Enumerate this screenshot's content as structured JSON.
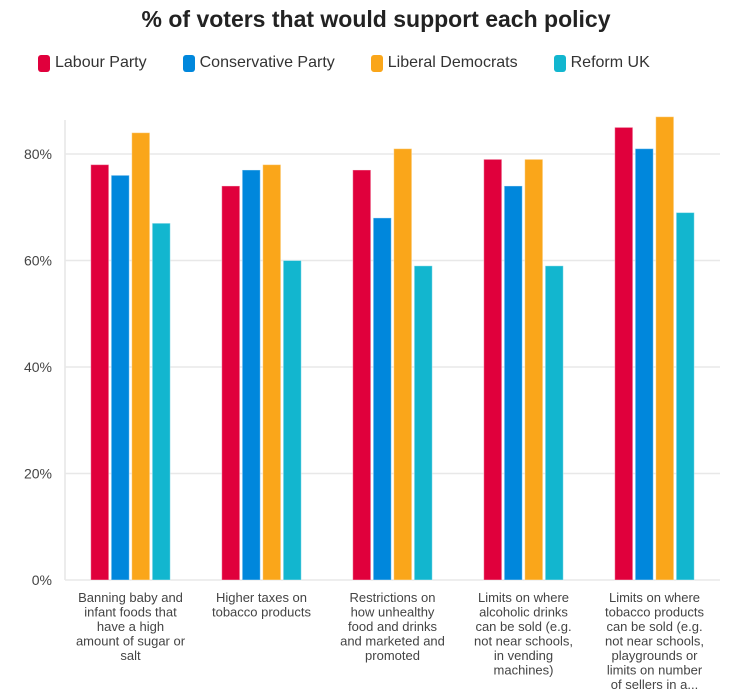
{
  "chart_data": {
    "type": "bar",
    "title": "% of voters that would support each policy",
    "xlabel": "",
    "ylabel": "",
    "ylim": [
      0,
      100
    ],
    "yticks": [
      "0%",
      "20%",
      "40%",
      "60%",
      "80%"
    ],
    "grid": true,
    "legend_position": "top",
    "categories": [
      [
        "Banning baby and",
        "infant foods that",
        "have a high",
        "amount of sugar or",
        "salt"
      ],
      [
        "Higher taxes on",
        "tobacco products"
      ],
      [
        "Restrictions on",
        "how unhealthy",
        "food and drinks",
        "and marketed and",
        "promoted"
      ],
      [
        "Limits on where",
        "alcoholic drinks",
        "can be sold (e.g.",
        "not near schools,",
        "in vending",
        "machines)"
      ],
      [
        "Limits on where",
        "tobacco products",
        "can be sold (e.g.",
        "not near schools,",
        "playgrounds or",
        "limits on number",
        "of sellers in a..."
      ]
    ],
    "series": [
      {
        "name": "Labour Party",
        "color": "#e0003c",
        "values": [
          78,
          74,
          77,
          79,
          85
        ]
      },
      {
        "name": "Conservative Party",
        "color": "#0087dc",
        "values": [
          76,
          77,
          68,
          74,
          81
        ]
      },
      {
        "name": "Liberal Democrats",
        "color": "#faa61a",
        "values": [
          84,
          78,
          81,
          79,
          87
        ]
      },
      {
        "name": "Reform UK",
        "color": "#12b6cf",
        "values": [
          67,
          60,
          59,
          59,
          69
        ]
      }
    ]
  }
}
